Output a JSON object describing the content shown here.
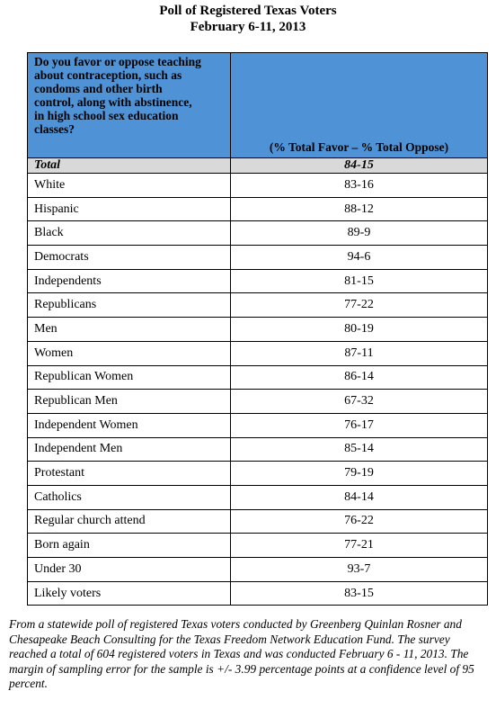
{
  "header": {
    "title": "Poll of Registered Texas Voters",
    "subtitle": "February 6-11, 2013"
  },
  "table": {
    "question": "Do you favor or oppose teaching about contraception, such as condoms and other birth control, along with abstinence, in high school sex education classes?",
    "column_header": "(% Total Favor – % Total Oppose)",
    "total_row": [
      "Total",
      "84-15"
    ],
    "rows": [
      [
        "White",
        "83-16"
      ],
      [
        "Hispanic",
        "88-12"
      ],
      [
        "Black",
        "89-9"
      ],
      [
        "Democrats",
        "94-6"
      ],
      [
        "Independents",
        "81-15"
      ],
      [
        "Republicans",
        "77-22"
      ],
      [
        "Men",
        "80-19"
      ],
      [
        "Women",
        "87-11"
      ],
      [
        "Republican Women",
        "86-14"
      ],
      [
        "Republican Men",
        "67-32"
      ],
      [
        "Independent Women",
        "76-17"
      ],
      [
        "Independent Men",
        "85-14"
      ],
      [
        "Protestant",
        "79-19"
      ],
      [
        "Catholics",
        "84-14"
      ],
      [
        "Regular church attend",
        "76-22"
      ],
      [
        "Born again",
        "77-21"
      ],
      [
        "Under 30",
        "93-7"
      ],
      [
        "Likely voters",
        "83-15"
      ]
    ]
  },
  "footnote": "From a statewide poll of registered Texas voters conducted by Greenberg Quinlan Rosner and Chesapeake Beach Consulting for the Texas Freedom Network Education Fund. The survey reached a total of 604 registered voters in Texas and was conducted February 6 - 11, 2013. The margin of sampling error for the sample is +/- 3.99 percentage points at a confidence level of 95 percent."
}
